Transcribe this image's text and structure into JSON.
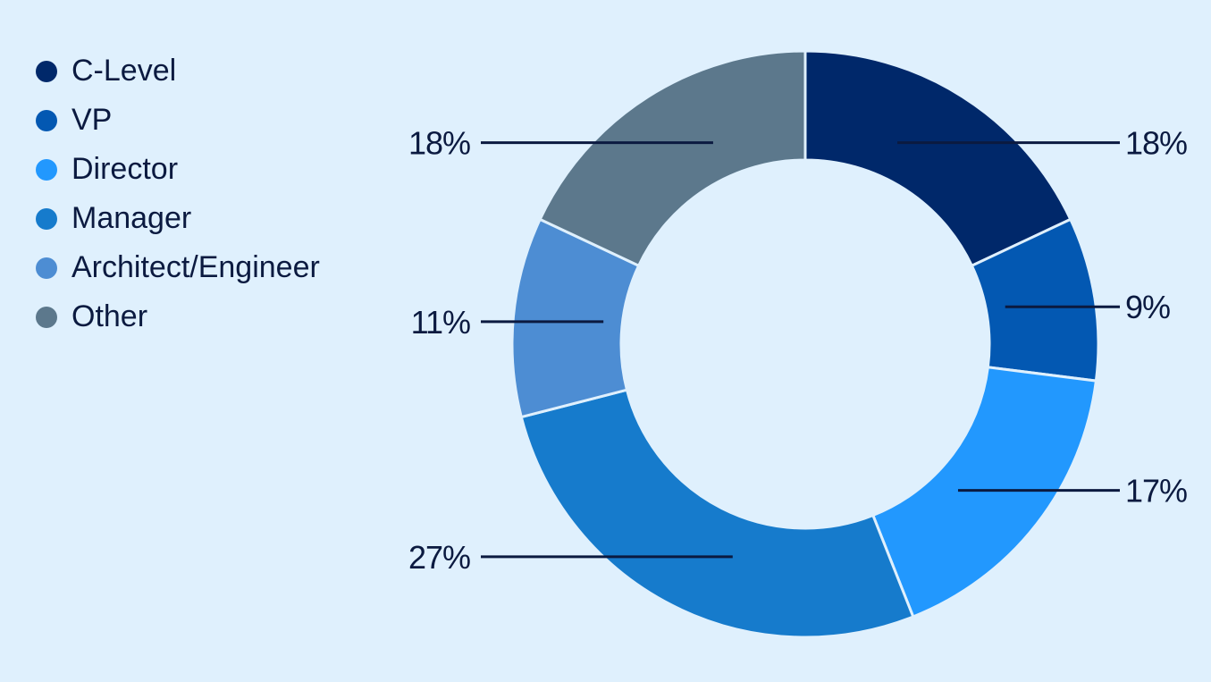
{
  "chart_data": {
    "type": "pie",
    "style": "donut",
    "legend_position": "top-left",
    "slices": [
      {
        "label": "C-Level",
        "value": 18,
        "display": "18%",
        "color": "#00286a"
      },
      {
        "label": "VP",
        "value": 9,
        "display": "9%",
        "color": "#0358b2"
      },
      {
        "label": "Director",
        "value": 17,
        "display": "17%",
        "color": "#2298fe"
      },
      {
        "label": "Manager",
        "value": 27,
        "display": "27%",
        "color": "#167bcc"
      },
      {
        "label": "Architect/Engineer",
        "value": 11,
        "display": "11%",
        "color": "#4d8dd3"
      },
      {
        "label": "Other",
        "value": 18,
        "display": "18%",
        "color": "#5c788c"
      }
    ]
  }
}
